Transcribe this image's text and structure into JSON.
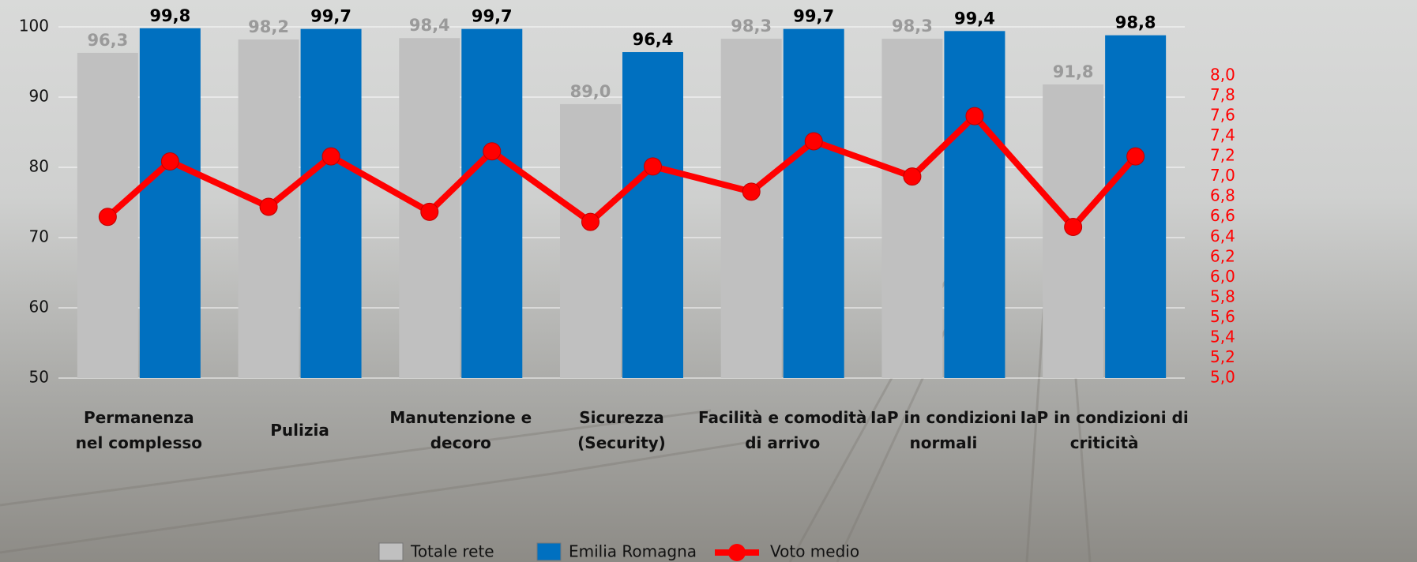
{
  "chart_data": {
    "type": "bar",
    "categories": [
      "Permanenza\nnel complesso",
      "Pulizia",
      "Manutenzione e\ndecoro",
      "Sicurezza\n(Security)",
      "Facilità e comodità\ndi arrivo",
      "IaP in condizioni\nnormali",
      "IaP in condizioni di\ncriticità"
    ],
    "series": [
      {
        "name": "Totale rete",
        "type": "bar",
        "color": "#c0c0c0",
        "label_color": "#9a9a9a",
        "values": [
          96.3,
          98.2,
          98.4,
          89.0,
          98.3,
          98.3,
          91.8
        ],
        "value_labels": [
          "96,3",
          "98,2",
          "98,4",
          "89,0",
          "98,3",
          "98,3",
          "91,8"
        ]
      },
      {
        "name": "Emilia Romagna",
        "type": "bar",
        "color": "#0070c0",
        "label_color": "#000000",
        "values": [
          99.8,
          99.7,
          99.7,
          96.4,
          99.7,
          99.4,
          98.8
        ],
        "value_labels": [
          "99,8",
          "99,7",
          "99,7",
          "96,4",
          "99,7",
          "99,4",
          "98,8"
        ]
      },
      {
        "name": "Voto medio",
        "type": "line",
        "axis": "y2",
        "color": "#ff0000",
        "values": [
          [
            6.6,
            7.15
          ],
          [
            6.7,
            7.2
          ],
          [
            6.65,
            7.25
          ],
          [
            6.55,
            7.1
          ],
          [
            6.85,
            7.35
          ],
          [
            7.0,
            7.6
          ],
          [
            6.5,
            7.2
          ]
        ]
      }
    ],
    "ylim": [
      50,
      100
    ],
    "yticks": [
      50,
      60,
      70,
      80,
      90,
      100
    ],
    "y2lim": [
      5,
      8
    ],
    "y2ticks": [
      {
        "value": 5.0,
        "label": "5,0"
      },
      {
        "value": 5.2,
        "label": "5,2"
      },
      {
        "value": 5.4,
        "label": "5,4"
      },
      {
        "value": 5.6,
        "label": "5,6"
      },
      {
        "value": 5.8,
        "label": "5,8"
      },
      {
        "value": 6.0,
        "label": "6,0"
      },
      {
        "value": 6.2,
        "label": "6,2"
      },
      {
        "value": 6.4,
        "label": "6,4"
      },
      {
        "value": 6.6,
        "label": "6,6"
      },
      {
        "value": 6.8,
        "label": "6,8"
      },
      {
        "value": 7.0,
        "label": "7,0"
      },
      {
        "value": 7.2,
        "label": "7,2"
      },
      {
        "value": 7.4,
        "label": "7,4"
      },
      {
        "value": 7.6,
        "label": "7,6"
      },
      {
        "value": 7.8,
        "label": "7,8"
      },
      {
        "value": 8.0,
        "label": "8,0"
      }
    ],
    "y2_color": "#ff0000",
    "grid": true
  }
}
